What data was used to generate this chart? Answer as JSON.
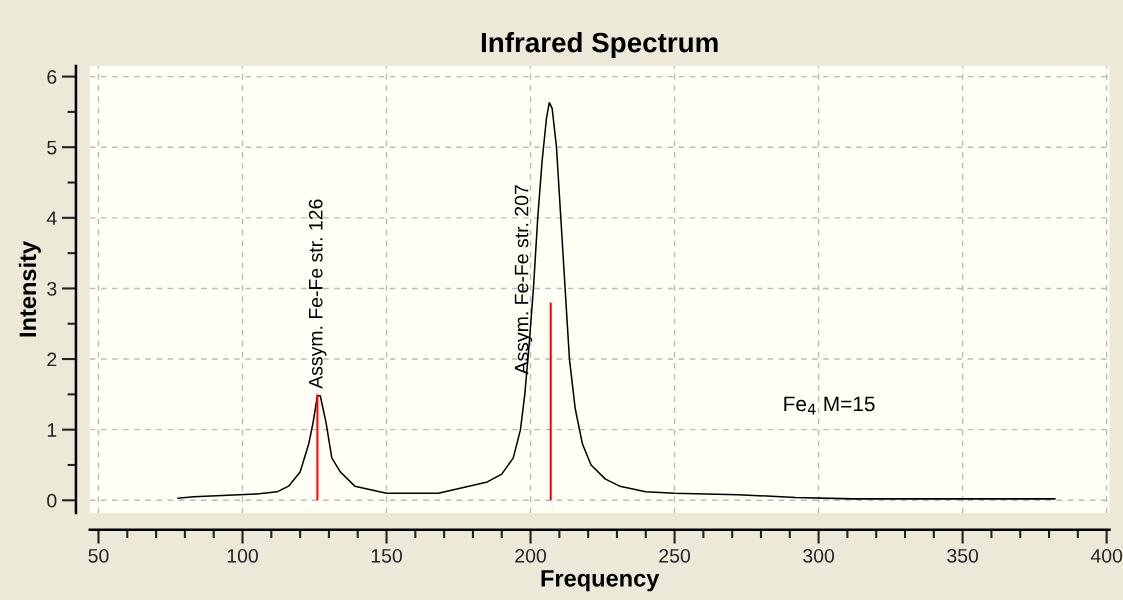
{
  "chart_data": {
    "type": "line",
    "title": "Infrared Spectrum",
    "xlabel": "Frequency",
    "ylabel": "Intensity",
    "xlim": [
      47,
      401
    ],
    "ylim": [
      -0.18,
      6.15
    ],
    "xticks": [
      50,
      100,
      150,
      200,
      250,
      300,
      350,
      400
    ],
    "yticks": [
      0,
      1,
      2,
      3,
      4,
      5,
      6
    ],
    "grid": true,
    "line_style": "solid",
    "marker": "none",
    "series": [
      {
        "color": "#000000",
        "x": [
          77.6,
          83,
          95,
          105,
          112,
          116,
          120,
          123,
          124.5,
          126,
          127,
          129,
          131,
          134,
          139,
          150,
          168,
          185,
          190,
          194,
          196.5,
          198,
          199.5,
          201,
          202.5,
          204,
          205.5,
          206.5,
          207.5,
          209,
          210.5,
          212,
          213.5,
          215.5,
          218,
          221,
          226,
          231,
          240,
          250,
          272,
          292,
          312,
          382
        ],
        "values": [
          0.03,
          0.05,
          0.07,
          0.09,
          0.12,
          0.2,
          0.4,
          0.8,
          1.1,
          1.48,
          1.48,
          1.1,
          0.6,
          0.4,
          0.2,
          0.1,
          0.1,
          0.26,
          0.37,
          0.6,
          1.0,
          1.5,
          2.2,
          3.0,
          4.0,
          4.8,
          5.4,
          5.63,
          5.55,
          5.0,
          4.0,
          3.0,
          2.0,
          1.3,
          0.8,
          0.5,
          0.3,
          0.2,
          0.12,
          0.1,
          0.08,
          0.04,
          0.02,
          0.02
        ]
      },
      {
        "type": "bar",
        "color": "#ff0000",
        "x": [
          126,
          207
        ],
        "values": [
          1.5,
          2.8
        ]
      }
    ],
    "annotations": [
      {
        "text": "Assym. Fe-Fe str. 126",
        "x": 126,
        "y": 1.5
      },
      "Assym. Fe-Fe str. 207",
      "Fe$_{4}$ M=15"
    ]
  }
}
